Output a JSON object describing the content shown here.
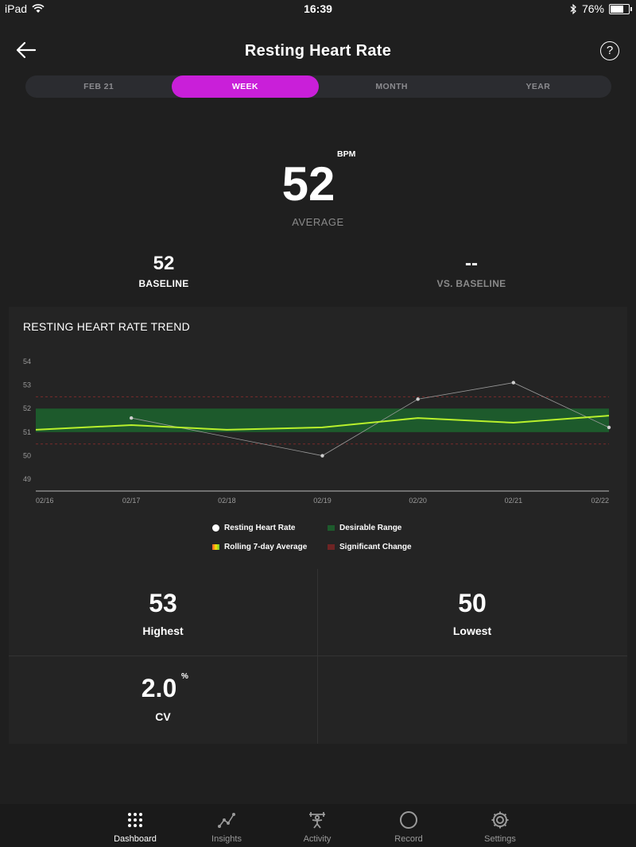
{
  "status_bar": {
    "device": "iPad",
    "time": "16:39",
    "battery": "76%",
    "battery_level": 0.76
  },
  "header": {
    "title": "Resting Heart Rate",
    "help": "?"
  },
  "tabs": [
    {
      "label": "FEB 21",
      "active": false
    },
    {
      "label": "WEEK",
      "active": true
    },
    {
      "label": "MONTH",
      "active": false
    },
    {
      "label": "YEAR",
      "active": false
    }
  ],
  "summary": {
    "value": "52",
    "unit": "BPM",
    "label": "AVERAGE",
    "baseline_value": "52",
    "baseline_label": "BASELINE",
    "vs_value": "--",
    "vs_label": "VS. BASELINE"
  },
  "trend": {
    "title": "RESTING HEART RATE TREND",
    "legend": [
      {
        "label": "Resting Heart Rate",
        "color": "#ffffff"
      },
      {
        "label": "Desirable Range",
        "color": "#1d5a2c"
      },
      {
        "label": "Rolling 7-day Average",
        "color": "#c7e62a"
      },
      {
        "label": "Significant Change",
        "color": "#6e2424"
      }
    ]
  },
  "chart_data": {
    "type": "line",
    "x": [
      "02/16",
      "02/17",
      "02/18",
      "02/19",
      "02/20",
      "02/21",
      "02/22"
    ],
    "series": [
      {
        "name": "Resting Heart Rate",
        "values": [
          null,
          51.6,
          null,
          50.0,
          52.4,
          53.1,
          51.2
        ],
        "color": "#9a9a9a"
      },
      {
        "name": "Rolling 7-day Average",
        "values": [
          51.1,
          51.3,
          51.1,
          51.2,
          51.6,
          51.4,
          51.7
        ],
        "color": "#b8f02c"
      }
    ],
    "desirable_range": [
      51.0,
      52.0
    ],
    "significant_change": [
      50.5,
      52.5
    ],
    "yticks": [
      49,
      50,
      51,
      52,
      53,
      54
    ],
    "ylim": [
      48.5,
      54.3
    ],
    "grid": false
  },
  "stats": [
    {
      "value": "53",
      "label": "Highest"
    },
    {
      "value": "50",
      "label": "Lowest"
    },
    {
      "value": "2.0",
      "unit": "%",
      "label": "CV"
    }
  ],
  "nav": [
    {
      "label": "Dashboard",
      "icon": "dashboard-icon",
      "active": true
    },
    {
      "label": "Insights",
      "icon": "insights-icon",
      "active": false
    },
    {
      "label": "Activity",
      "icon": "activity-icon",
      "active": false
    },
    {
      "label": "Record",
      "icon": "record-icon",
      "active": false
    },
    {
      "label": "Settings",
      "icon": "settings-icon",
      "active": false
    }
  ]
}
